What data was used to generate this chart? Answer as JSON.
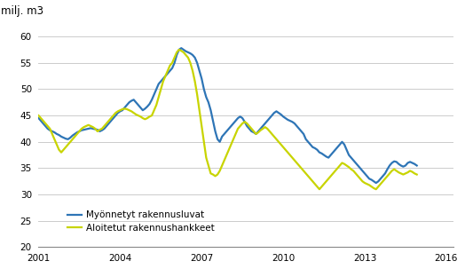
{
  "title": "",
  "ylabel": "milj. m3",
  "xlim_start": 2001.0,
  "xlim_end": 2016.25,
  "ylim": [
    20,
    62
  ],
  "yticks": [
    20,
    25,
    30,
    35,
    40,
    45,
    50,
    55,
    60
  ],
  "xticks": [
    2001,
    2004,
    2007,
    2010,
    2013,
    2016
  ],
  "line1_color": "#2e75b6",
  "line2_color": "#c8d400",
  "line1_label": "Myönnetyt rakennusluvat",
  "line2_label": "Aloitetut rakennushankkeet",
  "line_width": 1.6,
  "bg_color": "#ffffff",
  "grid_color": "#cccccc",
  "series1": [
    44.5,
    44.0,
    43.5,
    43.0,
    42.5,
    42.2,
    42.0,
    41.8,
    41.5,
    41.3,
    41.0,
    40.8,
    40.6,
    40.5,
    40.8,
    41.2,
    41.5,
    41.8,
    42.0,
    42.2,
    42.3,
    42.4,
    42.5,
    42.6,
    42.5,
    42.4,
    42.3,
    42.0,
    42.2,
    42.5,
    43.0,
    43.5,
    44.0,
    44.5,
    45.0,
    45.5,
    45.8,
    46.0,
    46.5,
    47.0,
    47.5,
    47.8,
    48.0,
    47.5,
    47.0,
    46.5,
    46.0,
    46.3,
    46.7,
    47.2,
    48.0,
    49.0,
    50.0,
    51.0,
    51.5,
    52.0,
    52.5,
    53.0,
    53.5,
    54.0,
    55.0,
    56.5,
    57.5,
    57.8,
    57.5,
    57.2,
    57.0,
    56.8,
    56.5,
    56.0,
    55.0,
    53.5,
    52.0,
    50.0,
    48.5,
    47.5,
    46.0,
    44.0,
    42.0,
    40.5,
    40.0,
    41.0,
    41.5,
    42.0,
    42.5,
    43.0,
    43.5,
    44.0,
    44.5,
    44.8,
    44.5,
    43.8,
    43.0,
    42.5,
    42.0,
    41.8,
    41.5,
    42.0,
    42.5,
    43.0,
    43.5,
    44.0,
    44.5,
    45.0,
    45.5,
    45.8,
    45.5,
    45.2,
    44.8,
    44.5,
    44.2,
    44.0,
    43.8,
    43.5,
    43.0,
    42.5,
    42.0,
    41.5,
    40.5,
    40.0,
    39.5,
    39.0,
    38.8,
    38.5,
    38.0,
    37.8,
    37.5,
    37.2,
    37.0,
    37.5,
    38.0,
    38.5,
    39.0,
    39.5,
    40.0,
    39.5,
    38.5,
    37.5,
    37.0,
    36.5,
    36.0,
    35.5,
    35.0,
    34.5,
    34.0,
    33.5,
    33.0,
    32.8,
    32.5,
    32.2,
    32.5,
    33.0,
    33.5,
    34.0,
    34.8,
    35.5,
    36.0,
    36.3,
    36.2,
    35.8,
    35.5,
    35.3,
    35.5,
    36.0,
    36.2,
    36.0,
    35.8,
    35.5
  ],
  "series2": [
    45.0,
    44.5,
    44.0,
    43.5,
    43.0,
    42.5,
    41.5,
    40.5,
    39.5,
    38.5,
    38.0,
    38.5,
    39.0,
    39.5,
    40.0,
    40.5,
    41.0,
    41.5,
    42.0,
    42.5,
    42.8,
    43.0,
    43.2,
    43.0,
    42.8,
    42.5,
    42.0,
    42.3,
    42.5,
    43.0,
    43.5,
    44.0,
    44.5,
    45.0,
    45.5,
    45.8,
    46.0,
    46.2,
    46.3,
    46.2,
    46.0,
    45.8,
    45.5,
    45.2,
    45.0,
    44.8,
    44.5,
    44.3,
    44.5,
    44.8,
    45.0,
    46.0,
    47.0,
    48.5,
    50.0,
    51.5,
    52.5,
    53.5,
    54.5,
    55.0,
    56.0,
    57.0,
    57.5,
    57.3,
    57.0,
    56.5,
    56.0,
    55.0,
    53.5,
    51.5,
    49.0,
    46.0,
    43.0,
    40.0,
    37.0,
    35.5,
    34.0,
    33.8,
    33.5,
    33.8,
    34.5,
    35.5,
    36.5,
    37.5,
    38.5,
    39.5,
    40.5,
    41.5,
    42.5,
    43.0,
    43.5,
    43.8,
    43.5,
    43.0,
    42.5,
    42.0,
    41.5,
    41.8,
    42.2,
    42.5,
    42.8,
    42.5,
    42.0,
    41.5,
    41.0,
    40.5,
    40.0,
    39.5,
    39.0,
    38.5,
    38.0,
    37.5,
    37.0,
    36.5,
    36.0,
    35.5,
    35.0,
    34.5,
    34.0,
    33.5,
    33.0,
    32.5,
    32.0,
    31.5,
    31.0,
    31.5,
    32.0,
    32.5,
    33.0,
    33.5,
    34.0,
    34.5,
    35.0,
    35.5,
    36.0,
    35.8,
    35.5,
    35.2,
    34.8,
    34.5,
    34.0,
    33.5,
    33.0,
    32.5,
    32.2,
    32.0,
    31.8,
    31.5,
    31.2,
    31.0,
    31.5,
    32.0,
    32.5,
    33.0,
    33.5,
    34.0,
    34.5,
    34.8,
    34.5,
    34.2,
    34.0,
    33.8,
    34.0,
    34.2,
    34.5,
    34.3,
    34.0,
    33.8
  ]
}
